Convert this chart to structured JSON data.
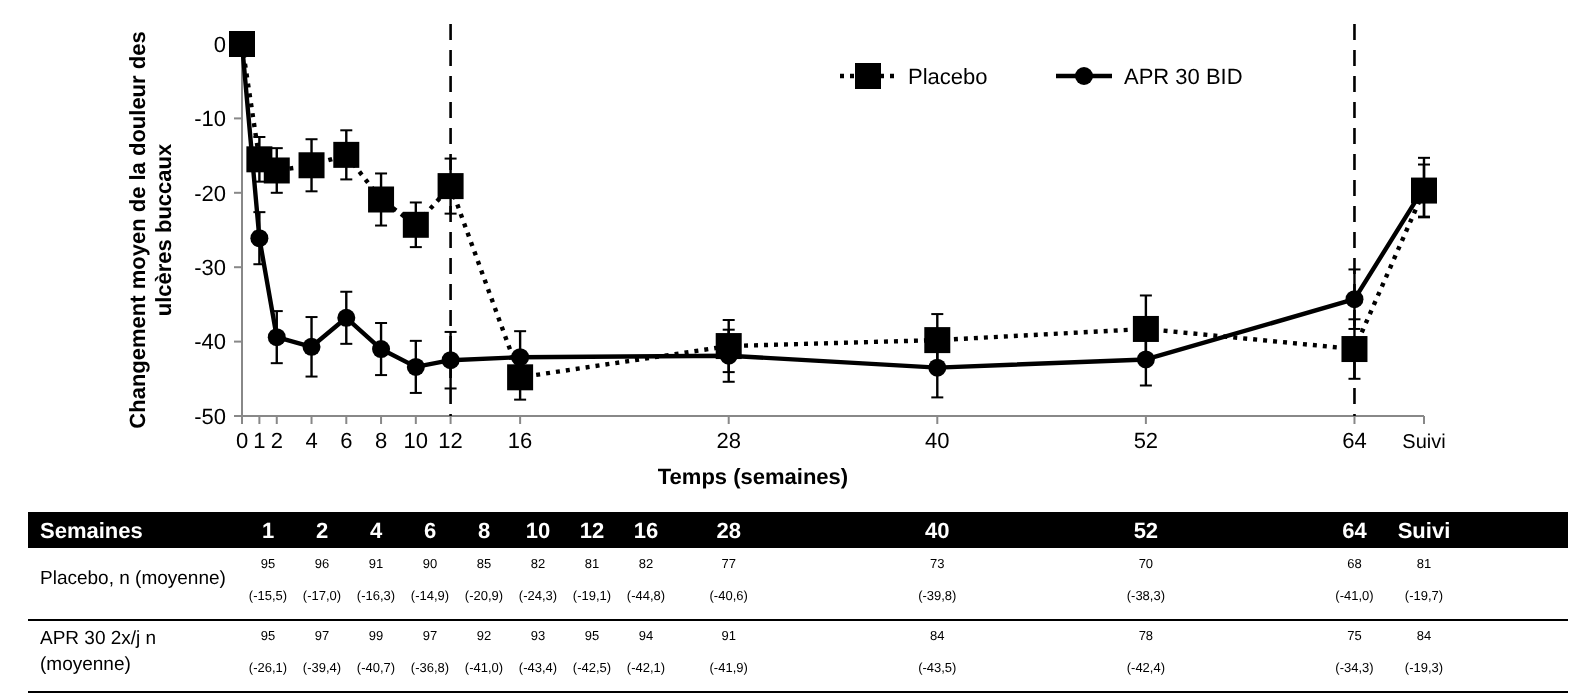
{
  "chart_data": {
    "type": "line",
    "xlabel": "Temps (semaines)",
    "ylabel": "Changement moyen de la douleur des\nulcères buccaux",
    "x": [
      0,
      1,
      2,
      4,
      6,
      8,
      10,
      12,
      16,
      28,
      40,
      52,
      64,
      68
    ],
    "xlim": [
      0,
      68
    ],
    "xticks": [
      0,
      1,
      2,
      4,
      6,
      8,
      10,
      12,
      16,
      28,
      40,
      52,
      64,
      {
        "value": 68,
        "label": "Suivi"
      }
    ],
    "ylim": [
      -50,
      0
    ],
    "yticks": [
      -50,
      -40,
      -30,
      -20,
      -10,
      0
    ],
    "grid": false,
    "legend": "top right",
    "ref_lines": [
      {
        "axis": "x",
        "value": 12,
        "line_style": "dashed",
        "color": "#000000"
      },
      {
        "axis": "x",
        "value": 64,
        "line_style": "dashed",
        "color": "#000000"
      }
    ],
    "annotations": [
      "Semaines",
      "Placebo, n (moyenne)",
      "APR 30 2x/j n (moyenne)",
      "1",
      "2",
      "4",
      "6",
      "8",
      "10",
      "12",
      "16",
      "28",
      "40",
      "52",
      "64",
      "Suivi"
    ],
    "series": [
      {
        "name": "Placebo",
        "color": "#000000",
        "marker": "square",
        "line_style": "dotted",
        "values": [
          0,
          -15.5,
          -17.0,
          -16.3,
          -14.9,
          -20.9,
          -24.3,
          -19.1,
          -44.8,
          -40.6,
          -39.8,
          -38.3,
          -41.0,
          -19.7
        ],
        "errors": [
          null,
          3,
          3,
          3.5,
          3.3,
          3.5,
          3,
          3.7,
          3,
          3.5,
          3.5,
          4.5,
          4,
          3.5
        ],
        "value_labels": [
          null,
          "95\n(-15,5)",
          "96\n(-17,0)",
          "91\n(-16,3)",
          "90\n(-14,9)",
          "85\n(-20,9)",
          "82\n(-24,3)",
          "81\n(-19,1)",
          "82\n(-44,8)",
          "77\n(-40,6)",
          "73\n(-39,8)",
          "70\n(-38,3)",
          "68\n(-41,0)",
          "81\n(-19,7)"
        ]
      },
      {
        "name": "APR 30 BID",
        "color": "#000000",
        "marker": "circle",
        "line_style": "solid",
        "values": [
          0,
          -26.1,
          -39.4,
          -40.7,
          -36.8,
          -41.0,
          -43.4,
          -42.5,
          -42.1,
          -41.9,
          -43.5,
          -42.4,
          -34.3,
          -19.3
        ],
        "errors": [
          null,
          3.5,
          3.5,
          4,
          3.5,
          3.5,
          3.5,
          3.8,
          3.5,
          3.5,
          4,
          3.5,
          4,
          4
        ],
        "value_labels": [
          null,
          "95\n(-26,1)",
          "97\n(-39,4)",
          "99\n(-40,7)",
          "97\n(-36,8)",
          "92\n(-41,0)",
          "93\n(-43,4)",
          "95\n(-42,5)",
          "94\n(-42,1)",
          "91\n(-41,9)",
          "84\n(-43,5)",
          "78\n(-42,4)",
          "75\n(-34,3)",
          "84\n(-19,3)"
        ]
      }
    ]
  }
}
